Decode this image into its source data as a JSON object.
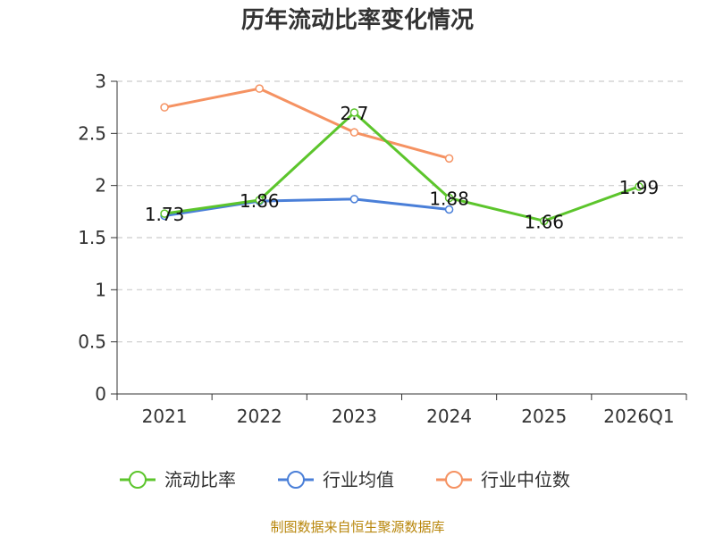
{
  "chart_data": {
    "type": "line",
    "title": "历年流动比率变化情况",
    "categories": [
      "2021",
      "2022",
      "2023",
      "2024",
      "2025",
      "2026Q1"
    ],
    "ylim": [
      0,
      3
    ],
    "yticks": [
      "0",
      "0.5",
      "1",
      "1.5",
      "2",
      "2.5",
      "3"
    ],
    "grid": true,
    "legend": "bottom",
    "series": [
      {
        "name": "流动比率",
        "color": "#5cc52c",
        "values": [
          1.73,
          1.86,
          2.7,
          1.88,
          1.66,
          1.99
        ],
        "labels": [
          "1.73",
          "1.86",
          "2.7",
          "1.88",
          "1.66",
          "1.99"
        ]
      },
      {
        "name": "行业均值",
        "color": "#4a7fd8",
        "values": [
          1.71,
          1.85,
          1.87,
          1.77,
          null,
          null
        ]
      },
      {
        "name": "行业中位数",
        "color": "#f59262",
        "values": [
          2.75,
          2.93,
          2.51,
          2.26,
          null,
          null
        ]
      }
    ],
    "source": "制图数据来自恒生聚源数据库"
  }
}
